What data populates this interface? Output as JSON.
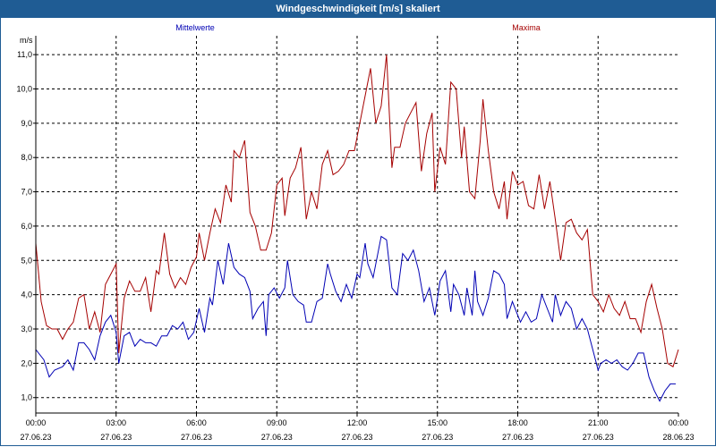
{
  "window": {
    "title": "Windgeschwindigkeit [m/s] skaliert"
  },
  "chart_data": {
    "type": "line",
    "title": "Windgeschwindigkeit [m/s] skaliert",
    "ylabel": "m/s",
    "xlabel": "",
    "ylim": [
      0.55,
      11.55
    ],
    "xlim": [
      0,
      24
    ],
    "grid": true,
    "y_ticks": [
      1,
      2,
      3,
      4,
      5,
      6,
      7,
      8,
      9,
      10,
      11
    ],
    "y_tick_labels": [
      "1,0",
      "2,0",
      "3,0",
      "4,0",
      "5,0",
      "6,0",
      "7,0",
      "8,0",
      "9,0",
      "10,0",
      "11,0"
    ],
    "x_ticks": [
      0,
      3,
      6,
      9,
      12,
      15,
      18,
      21,
      24
    ],
    "x_tick_labels": [
      {
        "time": "00:00",
        "date": "27.06.23"
      },
      {
        "time": "03:00",
        "date": "27.06.23"
      },
      {
        "time": "06:00",
        "date": "27.06.23"
      },
      {
        "time": "09:00",
        "date": "27.06.23"
      },
      {
        "time": "12:00",
        "date": "27.06.23"
      },
      {
        "time": "15:00",
        "date": "27.06.23"
      },
      {
        "time": "18:00",
        "date": "27.06.23"
      },
      {
        "time": "21:00",
        "date": "27.06.23"
      },
      {
        "time": "00:00",
        "date": "28.06.23"
      }
    ],
    "series": [
      {
        "name": "Mittelwerte",
        "color": "#0000b4",
        "points": [
          [
            0,
            2.4
          ],
          [
            0.3,
            2.1
          ],
          [
            0.5,
            1.6
          ],
          [
            0.7,
            1.8
          ],
          [
            1,
            1.9
          ],
          [
            1.2,
            2.1
          ],
          [
            1.4,
            1.8
          ],
          [
            1.6,
            2.6
          ],
          [
            1.8,
            2.6
          ],
          [
            2,
            2.4
          ],
          [
            2.2,
            2.1
          ],
          [
            2.4,
            2.8
          ],
          [
            2.6,
            3.2
          ],
          [
            2.8,
            3.4
          ],
          [
            3,
            2.9
          ],
          [
            3.1,
            2.0
          ],
          [
            3.3,
            2.8
          ],
          [
            3.5,
            2.9
          ],
          [
            3.7,
            2.5
          ],
          [
            3.9,
            2.7
          ],
          [
            4.1,
            2.6
          ],
          [
            4.3,
            2.6
          ],
          [
            4.5,
            2.5
          ],
          [
            4.7,
            2.8
          ],
          [
            4.9,
            2.8
          ],
          [
            5.1,
            3.1
          ],
          [
            5.3,
            3.0
          ],
          [
            5.5,
            3.2
          ],
          [
            5.7,
            2.7
          ],
          [
            5.9,
            2.9
          ],
          [
            6.1,
            3.6
          ],
          [
            6.3,
            2.9
          ],
          [
            6.5,
            3.9
          ],
          [
            6.6,
            3.7
          ],
          [
            6.8,
            5.0
          ],
          [
            7,
            4.3
          ],
          [
            7.2,
            5.5
          ],
          [
            7.4,
            4.8
          ],
          [
            7.6,
            4.6
          ],
          [
            7.8,
            4.5
          ],
          [
            8,
            4.1
          ],
          [
            8.1,
            3.3
          ],
          [
            8.3,
            3.6
          ],
          [
            8.5,
            3.8
          ],
          [
            8.6,
            2.8
          ],
          [
            8.7,
            4.0
          ],
          [
            8.9,
            4.2
          ],
          [
            9.1,
            3.9
          ],
          [
            9.3,
            4.2
          ],
          [
            9.4,
            5.0
          ],
          [
            9.6,
            4.0
          ],
          [
            9.8,
            3.8
          ],
          [
            10,
            3.7
          ],
          [
            10.1,
            3.2
          ],
          [
            10.3,
            3.2
          ],
          [
            10.5,
            3.8
          ],
          [
            10.7,
            3.9
          ],
          [
            10.9,
            4.9
          ],
          [
            11,
            4.6
          ],
          [
            11.2,
            4.1
          ],
          [
            11.4,
            3.8
          ],
          [
            11.6,
            4.3
          ],
          [
            11.8,
            3.9
          ],
          [
            12,
            4.6
          ],
          [
            12.1,
            4.5
          ],
          [
            12.3,
            5.5
          ],
          [
            12.4,
            4.9
          ],
          [
            12.6,
            4.5
          ],
          [
            12.8,
            5.3
          ],
          [
            12.9,
            5.7
          ],
          [
            13.1,
            5.6
          ],
          [
            13.3,
            4.2
          ],
          [
            13.5,
            4.0
          ],
          [
            13.7,
            5.2
          ],
          [
            13.9,
            5.0
          ],
          [
            14.1,
            5.3
          ],
          [
            14.3,
            4.7
          ],
          [
            14.5,
            3.8
          ],
          [
            14.7,
            4.2
          ],
          [
            14.9,
            3.4
          ],
          [
            15.1,
            4.4
          ],
          [
            15.3,
            4.7
          ],
          [
            15.5,
            3.5
          ],
          [
            15.6,
            4.3
          ],
          [
            15.8,
            4.0
          ],
          [
            16,
            3.4
          ],
          [
            16.1,
            4.2
          ],
          [
            16.3,
            3.4
          ],
          [
            16.4,
            4.7
          ],
          [
            16.5,
            3.8
          ],
          [
            16.7,
            3.4
          ],
          [
            16.9,
            3.9
          ],
          [
            17.1,
            4.7
          ],
          [
            17.3,
            4.6
          ],
          [
            17.5,
            4.3
          ],
          [
            17.6,
            3.3
          ],
          [
            17.8,
            3.8
          ],
          [
            18,
            3.4
          ],
          [
            18.1,
            3.2
          ],
          [
            18.3,
            3.5
          ],
          [
            18.5,
            3.2
          ],
          [
            18.7,
            3.3
          ],
          [
            18.9,
            4.0
          ],
          [
            19.1,
            3.6
          ],
          [
            19.3,
            3.2
          ],
          [
            19.4,
            4.0
          ],
          [
            19.6,
            3.4
          ],
          [
            19.8,
            3.8
          ],
          [
            20,
            3.6
          ],
          [
            20.2,
            3.0
          ],
          [
            20.4,
            3.3
          ],
          [
            20.6,
            3.0
          ],
          [
            20.8,
            2.4
          ],
          [
            21,
            1.8
          ],
          [
            21.1,
            2.0
          ],
          [
            21.3,
            2.1
          ],
          [
            21.5,
            2.0
          ],
          [
            21.7,
            2.1
          ],
          [
            21.9,
            1.9
          ],
          [
            22.1,
            1.8
          ],
          [
            22.3,
            2.0
          ],
          [
            22.5,
            2.3
          ],
          [
            22.7,
            2.3
          ],
          [
            22.9,
            1.6
          ],
          [
            23.1,
            1.2
          ],
          [
            23.3,
            0.9
          ],
          [
            23.5,
            1.2
          ],
          [
            23.7,
            1.4
          ],
          [
            23.9,
            1.4
          ]
        ]
      },
      {
        "name": "Maxima",
        "color": "#a50000",
        "points": [
          [
            0,
            5.5
          ],
          [
            0.2,
            3.8
          ],
          [
            0.4,
            3.1
          ],
          [
            0.6,
            3.0
          ],
          [
            0.8,
            3.0
          ],
          [
            1,
            2.7
          ],
          [
            1.2,
            3.0
          ],
          [
            1.4,
            3.2
          ],
          [
            1.6,
            3.9
          ],
          [
            1.8,
            4.0
          ],
          [
            2,
            3.0
          ],
          [
            2.2,
            3.5
          ],
          [
            2.4,
            2.9
          ],
          [
            2.6,
            4.3
          ],
          [
            2.8,
            4.6
          ],
          [
            3,
            4.9
          ],
          [
            3.1,
            2.3
          ],
          [
            3.3,
            3.9
          ],
          [
            3.5,
            4.4
          ],
          [
            3.7,
            4.1
          ],
          [
            3.9,
            4.1
          ],
          [
            4.1,
            4.5
          ],
          [
            4.3,
            3.5
          ],
          [
            4.5,
            4.7
          ],
          [
            4.6,
            4.6
          ],
          [
            4.8,
            5.8
          ],
          [
            5,
            4.6
          ],
          [
            5.2,
            4.2
          ],
          [
            5.4,
            4.5
          ],
          [
            5.6,
            4.3
          ],
          [
            5.8,
            4.8
          ],
          [
            6,
            5.1
          ],
          [
            6.1,
            5.8
          ],
          [
            6.3,
            5.0
          ],
          [
            6.5,
            5.8
          ],
          [
            6.7,
            6.5
          ],
          [
            6.9,
            6.1
          ],
          [
            7.1,
            7.2
          ],
          [
            7.3,
            6.7
          ],
          [
            7.4,
            8.2
          ],
          [
            7.6,
            8.0
          ],
          [
            7.8,
            8.5
          ],
          [
            8,
            6.4
          ],
          [
            8.2,
            6.0
          ],
          [
            8.4,
            5.3
          ],
          [
            8.6,
            5.3
          ],
          [
            8.8,
            5.8
          ],
          [
            9,
            7.2
          ],
          [
            9.2,
            7.4
          ],
          [
            9.3,
            6.3
          ],
          [
            9.5,
            7.4
          ],
          [
            9.7,
            7.7
          ],
          [
            9.9,
            8.3
          ],
          [
            10.1,
            6.2
          ],
          [
            10.3,
            7.0
          ],
          [
            10.5,
            6.5
          ],
          [
            10.7,
            7.8
          ],
          [
            10.9,
            8.2
          ],
          [
            11.1,
            7.5
          ],
          [
            11.3,
            7.6
          ],
          [
            11.5,
            7.8
          ],
          [
            11.7,
            8.2
          ],
          [
            11.9,
            8.2
          ],
          [
            12.1,
            9.0
          ],
          [
            12.3,
            9.8
          ],
          [
            12.5,
            10.6
          ],
          [
            12.7,
            9.0
          ],
          [
            12.9,
            9.5
          ],
          [
            13.1,
            11.0
          ],
          [
            13.3,
            7.7
          ],
          [
            13.4,
            8.3
          ],
          [
            13.6,
            8.3
          ],
          [
            13.8,
            9.0
          ],
          [
            14,
            9.3
          ],
          [
            14.2,
            9.6
          ],
          [
            14.4,
            7.6
          ],
          [
            14.6,
            8.7
          ],
          [
            14.8,
            9.3
          ],
          [
            14.9,
            7.0
          ],
          [
            15.1,
            8.3
          ],
          [
            15.3,
            7.8
          ],
          [
            15.5,
            10.2
          ],
          [
            15.7,
            10.0
          ],
          [
            15.9,
            8.0
          ],
          [
            16,
            8.9
          ],
          [
            16.2,
            7.0
          ],
          [
            16.4,
            6.8
          ],
          [
            16.6,
            8.5
          ],
          [
            16.7,
            9.7
          ],
          [
            16.9,
            8.2
          ],
          [
            17.1,
            7.0
          ],
          [
            17.3,
            6.5
          ],
          [
            17.5,
            7.3
          ],
          [
            17.6,
            6.2
          ],
          [
            17.8,
            7.6
          ],
          [
            18,
            7.2
          ],
          [
            18.2,
            7.3
          ],
          [
            18.4,
            6.6
          ],
          [
            18.6,
            6.5
          ],
          [
            18.8,
            7.5
          ],
          [
            19,
            6.5
          ],
          [
            19.2,
            7.3
          ],
          [
            19.4,
            6.2
          ],
          [
            19.6,
            5.0
          ],
          [
            19.8,
            6.1
          ],
          [
            20,
            6.2
          ],
          [
            20.2,
            5.8
          ],
          [
            20.4,
            5.6
          ],
          [
            20.6,
            5.9
          ],
          [
            20.8,
            4.0
          ],
          [
            21,
            3.8
          ],
          [
            21.2,
            3.5
          ],
          [
            21.4,
            4.0
          ],
          [
            21.6,
            3.6
          ],
          [
            21.8,
            3.4
          ],
          [
            22,
            3.8
          ],
          [
            22.2,
            3.3
          ],
          [
            22.4,
            3.3
          ],
          [
            22.6,
            2.9
          ],
          [
            22.8,
            3.8
          ],
          [
            23,
            4.3
          ],
          [
            23.2,
            3.6
          ],
          [
            23.4,
            3.0
          ],
          [
            23.6,
            2.0
          ],
          [
            23.8,
            1.9
          ],
          [
            24,
            2.4
          ]
        ]
      }
    ]
  }
}
